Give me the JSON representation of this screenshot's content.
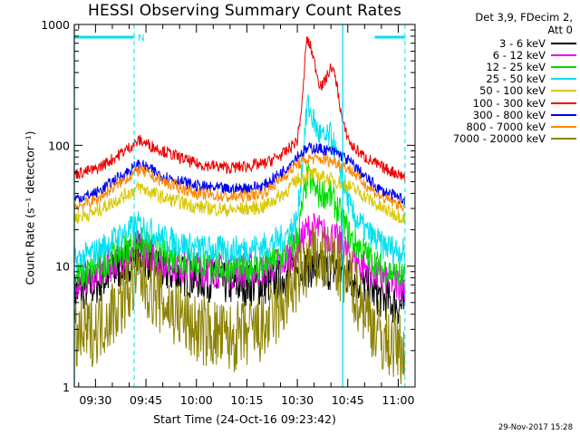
{
  "chart_data": {
    "type": "line",
    "title": "HESSI Observing Summary Count Rates",
    "legend_header": [
      "Det 3,9, FDecim 2,",
      "Att 0"
    ],
    "xlabel": "Start Time (24-Oct-16 09:23:42)",
    "ylabel": "Count Rate (s⁻¹ detector⁻¹)",
    "y_scale": "log",
    "ylim": [
      1,
      1000
    ],
    "y_ticks": [
      "1",
      "10",
      "100",
      "1000"
    ],
    "x_tick_labels": [
      "09:30",
      "09:45",
      "10:00",
      "10:15",
      "10:30",
      "10:45",
      "11:00"
    ],
    "x_ticks_minutes": [
      30,
      45,
      60,
      75,
      90,
      105,
      120
    ],
    "xlim_minutes": [
      23.7,
      125.0
    ],
    "x_units": "minutes after 09:00 UT",
    "night_intervals": [
      [
        23.7,
        41.5
      ],
      [
        113.0,
        122.0
      ]
    ],
    "saa_vlines": [
      41.5,
      122.0
    ],
    "orbit_vlines": [
      23.7,
      103.5
    ],
    "night_label": "N",
    "timestamp": "29-Nov-2017 15:28",
    "series": [
      {
        "name": "3 - 6 keV",
        "color": "#000000",
        "noise": 0.18,
        "x": [
          23.7,
          30,
          36,
          43,
          50,
          60,
          70,
          80,
          86,
          90,
          93,
          96,
          98,
          100,
          103,
          106,
          110,
          115,
          122
        ],
        "y": [
          6,
          7,
          9,
          13,
          9,
          8,
          7,
          7,
          8,
          9.5,
          10,
          9.5,
          9,
          9.5,
          9,
          8,
          7,
          5.5,
          4.5
        ]
      },
      {
        "name": "6 - 12 keV",
        "color": "#ee00ee",
        "noise": 0.15,
        "x": [
          23.7,
          30,
          36,
          43,
          50,
          60,
          70,
          80,
          86,
          90,
          93,
          96,
          98,
          100,
          103,
          106,
          110,
          115,
          122
        ],
        "y": [
          7.5,
          8.5,
          11,
          14.5,
          11,
          9.5,
          9,
          9.5,
          11,
          14,
          20,
          20,
          18,
          18,
          15,
          12,
          10,
          8,
          7
        ]
      },
      {
        "name": "12 - 25 keV",
        "color": "#00dd00",
        "noise": 0.13,
        "x": [
          23.7,
          30,
          36,
          43,
          50,
          60,
          70,
          80,
          86,
          90,
          93,
          96,
          98,
          100,
          103,
          106,
          110,
          115,
          122
        ],
        "y": [
          8,
          9.5,
          12.5,
          16,
          12.5,
          10.5,
          9.5,
          10,
          12,
          17,
          55,
          40,
          40,
          38,
          26,
          17,
          13,
          9.5,
          8
        ]
      },
      {
        "name": "25 - 50 keV",
        "color": "#00e0f0",
        "noise": 0.12,
        "x": [
          23.7,
          30,
          36,
          43,
          50,
          60,
          70,
          80,
          86,
          90,
          93,
          96,
          98,
          100,
          103,
          106,
          110,
          115,
          122
        ],
        "y": [
          11,
          13,
          17,
          22,
          17,
          14,
          13.5,
          14.5,
          17,
          24,
          220,
          130,
          110,
          120,
          60,
          28,
          20,
          15,
          13
        ]
      },
      {
        "name": "50 - 100 keV",
        "color": "#d8c800",
        "noise": 0.06,
        "x": [
          23.7,
          30,
          36,
          43,
          50,
          60,
          70,
          80,
          86,
          90,
          94,
          98,
          102,
          106,
          110,
          115,
          122
        ],
        "y": [
          25,
          28,
          35,
          45,
          37,
          31,
          29,
          31,
          40,
          52,
          58,
          54,
          50,
          45,
          38,
          30,
          25
        ]
      },
      {
        "name": "100 - 300 keV",
        "color": "#ee0000",
        "noise": 0.05,
        "x": [
          23.7,
          30,
          36,
          43,
          50,
          60,
          70,
          80,
          86,
          90,
          91.5,
          92.7,
          94,
          96.5,
          97.5,
          99,
          100.2,
          101.5,
          103.5,
          106,
          110,
          115,
          122
        ],
        "y": [
          58,
          63,
          80,
          110,
          90,
          70,
          65,
          70,
          85,
          110,
          230,
          760,
          650,
          330,
          310,
          380,
          450,
          350,
          150,
          100,
          80,
          66,
          55
        ]
      },
      {
        "name": "300 - 800 keV",
        "color": "#0000ee",
        "noise": 0.05,
        "x": [
          23.7,
          30,
          36,
          43,
          50,
          60,
          70,
          80,
          86,
          90,
          94,
          98,
          102,
          106,
          110,
          115,
          122
        ],
        "y": [
          36,
          40,
          52,
          70,
          56,
          46,
          43,
          46,
          62,
          82,
          96,
          92,
          86,
          72,
          55,
          42,
          35
        ]
      },
      {
        "name": "800 - 7000 keV",
        "color": "#ff8800",
        "noise": 0.05,
        "x": [
          23.7,
          30,
          36,
          43,
          50,
          60,
          70,
          80,
          86,
          90,
          94,
          98,
          102,
          106,
          110,
          115,
          122
        ],
        "y": [
          31,
          35,
          46,
          63,
          50,
          40,
          37,
          40,
          55,
          70,
          78,
          76,
          72,
          62,
          48,
          37,
          31
        ]
      },
      {
        "name": "7000 - 20000 keV",
        "color": "#8c8200",
        "noise": 0.3,
        "x": [
          23.7,
          30,
          36,
          43,
          50,
          60,
          70,
          80,
          86,
          90,
          94,
          98,
          102,
          106,
          110,
          115,
          122
        ],
        "y": [
          2.5,
          3,
          4.5,
          8.5,
          5,
          3,
          2.5,
          3,
          5,
          8,
          11,
          11.5,
          10,
          7,
          4.5,
          2.5,
          2
        ]
      }
    ]
  }
}
